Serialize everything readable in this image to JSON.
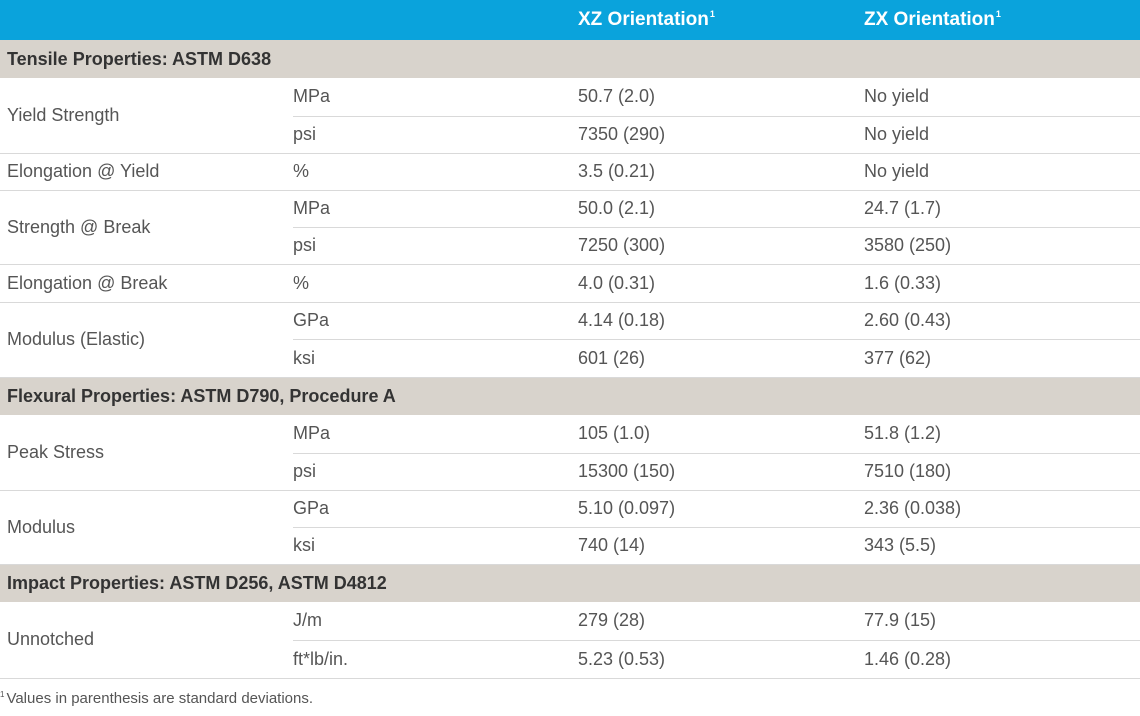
{
  "header": {
    "col_xz": "XZ Orientation",
    "col_zx": "ZX Orientation",
    "footnote_mark": "1"
  },
  "sections": [
    {
      "title": "Tensile Properties: ASTM D638",
      "properties": [
        {
          "name": "Yield Strength",
          "rows": [
            {
              "unit": "MPa",
              "xz": "50.7 (2.0)",
              "zx": "No yield"
            },
            {
              "unit": "psi",
              "xz": "7350 (290)",
              "zx": "No yield"
            }
          ]
        },
        {
          "name": "Elongation @ Yield",
          "rows": [
            {
              "unit": "%",
              "xz": "3.5 (0.21)",
              "zx": "No yield"
            }
          ]
        },
        {
          "name": "Strength @ Break",
          "rows": [
            {
              "unit": "MPa",
              "xz": "50.0 (2.1)",
              "zx": "24.7 (1.7)"
            },
            {
              "unit": "psi",
              "xz": "7250 (300)",
              "zx": "3580 (250)"
            }
          ]
        },
        {
          "name": "Elongation @ Break",
          "rows": [
            {
              "unit": "%",
              "xz": "4.0 (0.31)",
              "zx": "1.6 (0.33)"
            }
          ]
        },
        {
          "name": "Modulus (Elastic)",
          "rows": [
            {
              "unit": "GPa",
              "xz": "4.14 (0.18)",
              "zx": "2.60 (0.43)"
            },
            {
              "unit": "ksi",
              "xz": "601 (26)",
              "zx": "377 (62)"
            }
          ]
        }
      ]
    },
    {
      "title": "Flexural Properties: ASTM D790, Procedure A",
      "properties": [
        {
          "name": "Peak Stress",
          "rows": [
            {
              "unit": "MPa",
              "xz": "105 (1.0)",
              "zx": "51.8 (1.2)"
            },
            {
              "unit": "psi",
              "xz": "15300 (150)",
              "zx": "7510 (180)"
            }
          ]
        },
        {
          "name": "Modulus",
          "rows": [
            {
              "unit": "GPa",
              "xz": "5.10 (0.097)",
              "zx": "2.36 (0.038)"
            },
            {
              "unit": "ksi",
              "xz": "740 (14)",
              "zx": "343 (5.5)"
            }
          ]
        }
      ]
    },
    {
      "title": "Impact Properties: ASTM D256, ASTM D4812",
      "properties": [
        {
          "name": "Unnotched",
          "rows": [
            {
              "unit": "J/m",
              "xz": "279 (28)",
              "zx": "77.9 (15)"
            },
            {
              "unit": "ft*lb/in.",
              "xz": "5.23 (0.53)",
              "zx": "1.46 (0.28)"
            }
          ]
        }
      ]
    }
  ],
  "footnote": {
    "mark": "1",
    "text": "Values in parenthesis are standard deviations."
  }
}
